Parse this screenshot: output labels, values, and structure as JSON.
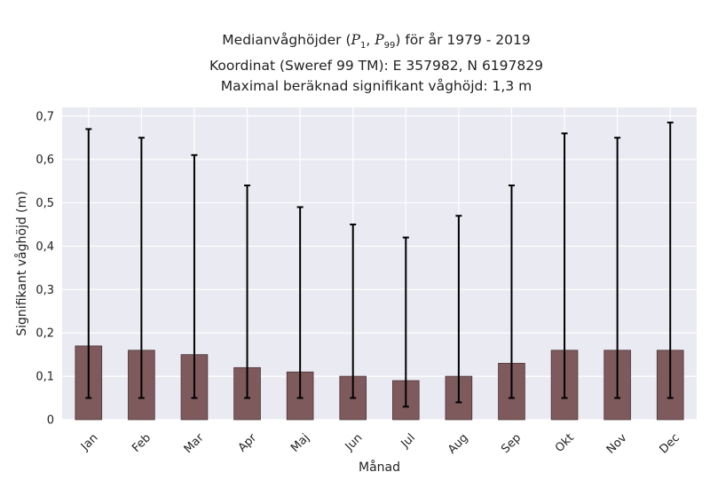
{
  "chart_data": {
    "type": "bar",
    "title_lines": [
      "Koordinat (Sweref 99 TM): E 357982, N 6197829",
      "Maximal beräknad signifikant våghöjd: 1,3 m"
    ],
    "title_first": {
      "prefix": "Medianvåghöjder (",
      "p1": "P",
      "p1_sub": "1",
      "sep": ", ",
      "p2": "P",
      "p2_sub": "99",
      "suffix": ") för år 1979 - 2019"
    },
    "xlabel": "Månad",
    "ylabel": "Signifikant våghöjd (m)",
    "ylim": [
      0,
      0.72
    ],
    "yticks": [
      0,
      0.1,
      0.2,
      0.3,
      0.4,
      0.5,
      0.6,
      0.7
    ],
    "ytick_labels": [
      "0",
      "0,1",
      "0,2",
      "0,3",
      "0,4",
      "0,5",
      "0,6",
      "0,7"
    ],
    "grid": true,
    "categories": [
      "Jan",
      "Feb",
      "Mar",
      "Apr",
      "Maj",
      "Jun",
      "Jul",
      "Aug",
      "Sep",
      "Okt",
      "Nov",
      "Dec"
    ],
    "values": [
      0.17,
      0.16,
      0.15,
      0.12,
      0.11,
      0.1,
      0.09,
      0.1,
      0.13,
      0.16,
      0.16,
      0.16
    ],
    "p1": [
      0.05,
      0.05,
      0.05,
      0.05,
      0.05,
      0.05,
      0.03,
      0.04,
      0.05,
      0.05,
      0.05,
      0.05
    ],
    "p99": [
      0.67,
      0.65,
      0.61,
      0.54,
      0.49,
      0.45,
      0.42,
      0.47,
      0.54,
      0.66,
      0.65,
      0.685
    ],
    "colors": {
      "bar": "#7e5a5d",
      "bar_edge": "#4a3436",
      "plot_bg": "#eaeaf2",
      "grid": "#ffffff",
      "errorbar": "#000000"
    }
  }
}
